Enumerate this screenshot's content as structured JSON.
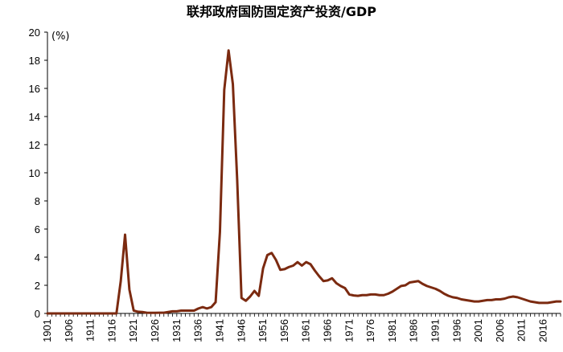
{
  "chart_data": {
    "type": "line",
    "title": "联邦政府国防固定资产投资/GDP",
    "ylabel": "(%)",
    "xlabel": "",
    "xlim": [
      1901,
      2020
    ],
    "ylim": [
      0,
      20
    ],
    "yticks": [
      0,
      2,
      4,
      6,
      8,
      10,
      12,
      14,
      16,
      18,
      20
    ],
    "xticks": [
      1901,
      1906,
      1911,
      1916,
      1921,
      1926,
      1931,
      1936,
      1941,
      1946,
      1951,
      1956,
      1961,
      1966,
      1971,
      1976,
      1981,
      1986,
      1991,
      1996,
      2001,
      2006,
      2011,
      2016
    ],
    "series": [
      {
        "name": "联邦政府国防固定资产投资/GDP",
        "color": "#7b2a10",
        "x": [
          1901,
          1902,
          1903,
          1904,
          1905,
          1906,
          1907,
          1908,
          1909,
          1910,
          1911,
          1912,
          1913,
          1914,
          1915,
          1916,
          1917,
          1918,
          1919,
          1920,
          1921,
          1922,
          1923,
          1924,
          1925,
          1926,
          1927,
          1928,
          1929,
          1930,
          1931,
          1932,
          1933,
          1934,
          1935,
          1936,
          1937,
          1938,
          1939,
          1940,
          1941,
          1942,
          1943,
          1944,
          1945,
          1946,
          1947,
          1948,
          1949,
          1950,
          1951,
          1952,
          1953,
          1954,
          1955,
          1956,
          1957,
          1958,
          1959,
          1960,
          1961,
          1962,
          1963,
          1964,
          1965,
          1966,
          1967,
          1968,
          1969,
          1970,
          1971,
          1972,
          1973,
          1974,
          1975,
          1976,
          1977,
          1978,
          1979,
          1980,
          1981,
          1982,
          1983,
          1984,
          1985,
          1986,
          1987,
          1988,
          1989,
          1990,
          1991,
          1992,
          1993,
          1994,
          1995,
          1996,
          1997,
          1998,
          1999,
          2000,
          2001,
          2002,
          2003,
          2004,
          2005,
          2006,
          2007,
          2008,
          2009,
          2010,
          2011,
          2012,
          2013,
          2014,
          2015,
          2016,
          2017,
          2018,
          2019,
          2020
        ],
        "y": [
          0,
          0,
          0,
          0,
          0,
          0,
          0,
          0,
          0,
          0,
          0,
          0,
          0,
          0,
          0,
          0,
          0,
          2.3,
          5.6,
          1.7,
          0.2,
          0.12,
          0.1,
          0.05,
          0.04,
          0.04,
          0.05,
          0.05,
          0.1,
          0.15,
          0.15,
          0.2,
          0.2,
          0.2,
          0.2,
          0.35,
          0.45,
          0.35,
          0.45,
          0.8,
          5.8,
          15.9,
          18.7,
          16.3,
          9.5,
          1.1,
          0.9,
          1.2,
          1.6,
          1.25,
          3.2,
          4.15,
          4.3,
          3.8,
          3.1,
          3.15,
          3.3,
          3.4,
          3.65,
          3.4,
          3.65,
          3.5,
          3.05,
          2.65,
          2.3,
          2.35,
          2.5,
          2.15,
          1.95,
          1.8,
          1.35,
          1.28,
          1.25,
          1.3,
          1.3,
          1.35,
          1.35,
          1.3,
          1.3,
          1.4,
          1.55,
          1.75,
          1.95,
          2.0,
          2.2,
          2.25,
          2.3,
          2.1,
          1.95,
          1.85,
          1.75,
          1.6,
          1.4,
          1.25,
          1.15,
          1.1,
          1.0,
          0.95,
          0.9,
          0.85,
          0.85,
          0.9,
          0.95,
          0.95,
          1.0,
          1.0,
          1.05,
          1.15,
          1.2,
          1.15,
          1.05,
          0.95,
          0.85,
          0.8,
          0.75,
          0.75,
          0.75,
          0.8,
          0.85,
          0.85
        ]
      }
    ]
  }
}
